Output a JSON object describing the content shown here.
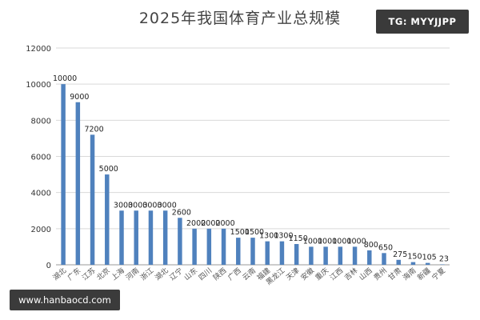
{
  "chart_data": {
    "type": "bar",
    "title": "2025年我国体育产业总规模",
    "categories": [
      "湖北",
      "广东",
      "江苏",
      "北京",
      "上海",
      "河南",
      "浙江",
      "湖北",
      "辽宁",
      "山东",
      "四川",
      "陕西",
      "广西",
      "云南",
      "福建",
      "黑龙江",
      "天津",
      "安徽",
      "重庆",
      "江西",
      "吉林",
      "山西",
      "贵州",
      "甘肃",
      "海南",
      "新疆",
      "宁夏"
    ],
    "values": [
      10000,
      9000,
      7200,
      5000,
      3000,
      3000,
      3000,
      3000,
      2600,
      2000,
      2000,
      2000,
      1500,
      1500,
      1300,
      1300,
      1150,
      1000,
      1000,
      1000,
      1000,
      800,
      650,
      275,
      150,
      105,
      23
    ],
    "value_labels": [
      "10000",
      "9000",
      "7200",
      "5000",
      "3000",
      "3000",
      "3000",
      "3000",
      "2600",
      "2000",
      "2000",
      "2000",
      "1500",
      "1500",
      "1300",
      "1300",
      "1150",
      "1000",
      "1000",
      "1000",
      "1000",
      "800",
      "650",
      "275",
      "150",
      "105",
      "23"
    ],
    "ylim": [
      0,
      12000
    ],
    "yticks": [
      0,
      2000,
      4000,
      6000,
      8000,
      10000,
      12000
    ],
    "xlabel": "",
    "ylabel": "",
    "grid": true,
    "bar_color": "#4f81bd",
    "grid_color": "#d9d9d9",
    "axis_color": "#999999",
    "text_color": "#333333"
  },
  "watermark_tg": "TG: MYYJJPP",
  "watermark_url": "www.hanbaocd.com"
}
